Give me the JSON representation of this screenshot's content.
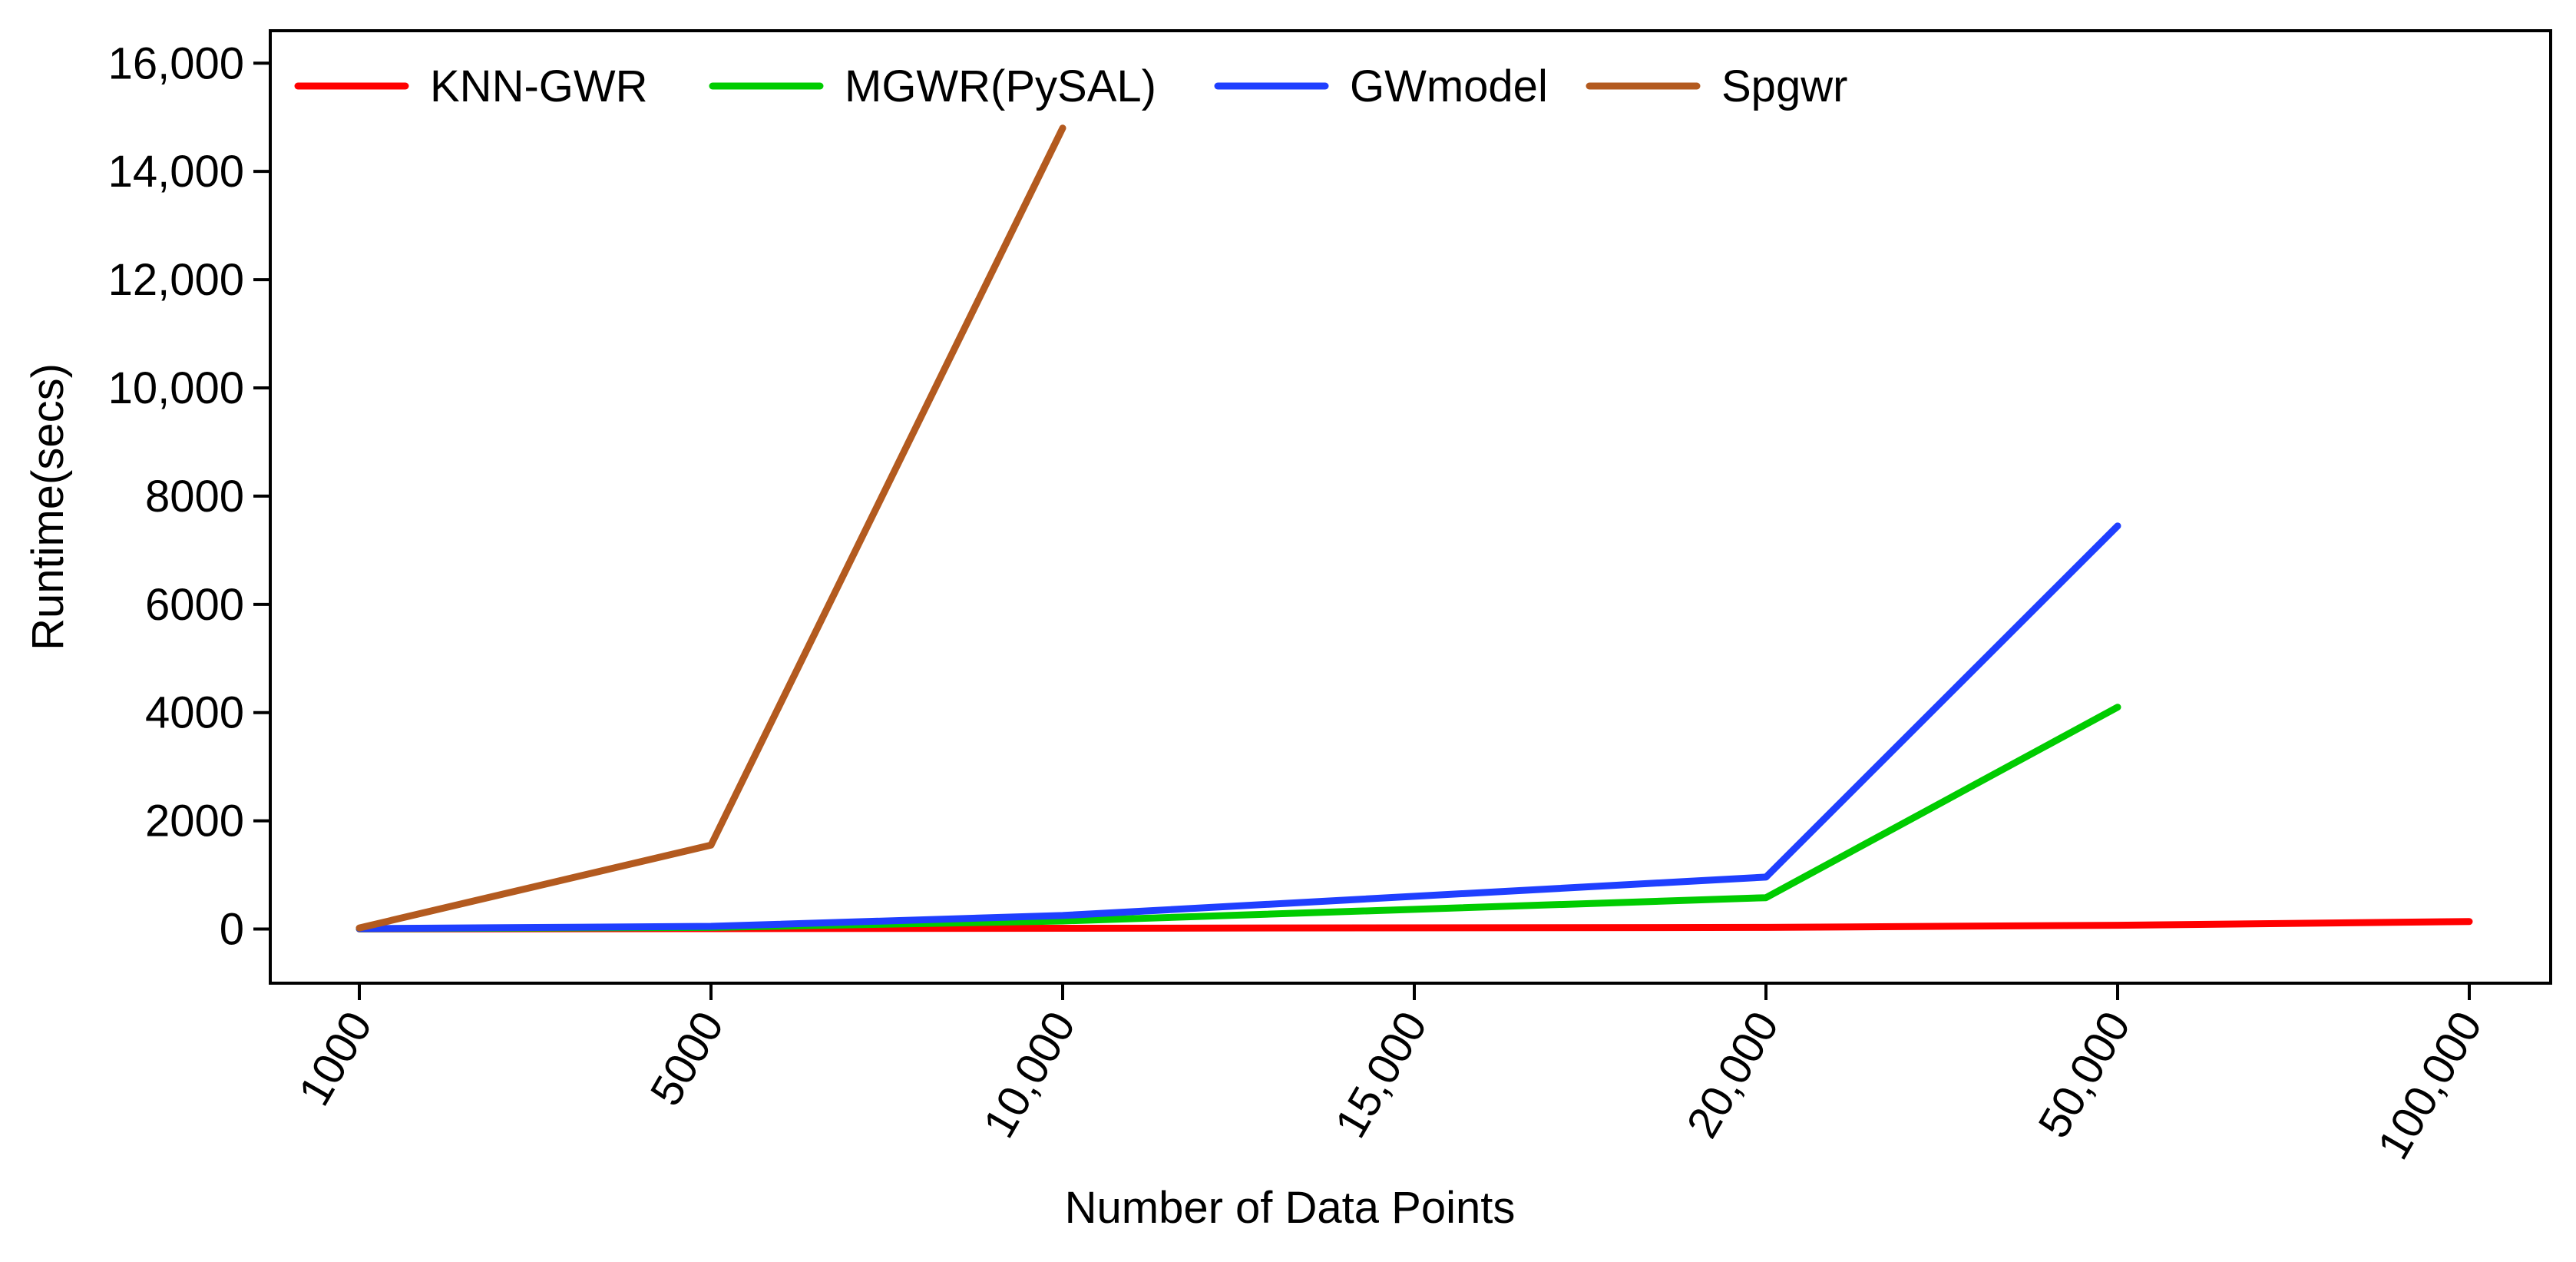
{
  "chart_data": {
    "type": "line",
    "title": "",
    "xlabel": "Number of Data Points",
    "ylabel": "Runtime(secs)",
    "categories": [
      "1000",
      "5000",
      "10,000",
      "15,000",
      "20,000",
      "50,000",
      "100,000"
    ],
    "ylim": [
      -1000,
      16600
    ],
    "yticks": [
      0,
      2000,
      4000,
      6000,
      8000,
      10000,
      12000,
      14000,
      16000
    ],
    "ytick_labels": [
      "0",
      "2000",
      "4000",
      "6000",
      "8000",
      "10,000",
      "12,000",
      "14,000",
      "16,000"
    ],
    "grid": false,
    "legend_position": "top-left",
    "series": [
      {
        "name": "KNN-GWR",
        "color": "#ff0000",
        "values": [
          2,
          8,
          15,
          null,
          30,
          70,
          140
        ]
      },
      {
        "name": "MGWR(PySAL)",
        "color": "#00cc00",
        "values": [
          5,
          30,
          150,
          null,
          580,
          4100,
          null
        ]
      },
      {
        "name": "GWmodel",
        "color": "#1f3fff",
        "values": [
          8,
          50,
          250,
          null,
          960,
          7450,
          null
        ]
      },
      {
        "name": "Spgwr",
        "color": "#b35a1f",
        "values": [
          20,
          1550,
          14800,
          null,
          null,
          null,
          null
        ]
      }
    ]
  }
}
